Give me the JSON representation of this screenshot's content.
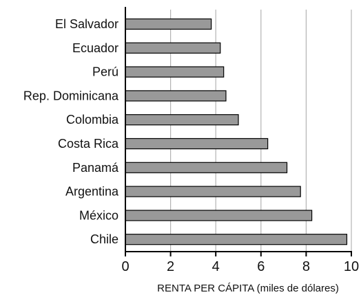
{
  "chart_data": {
    "type": "bar",
    "orientation": "horizontal",
    "categories": [
      "El Salvador",
      "Ecuador",
      "Perú",
      "Rep. Dominicana",
      "Colombia",
      "Costa Rica",
      "Panamá",
      "Argentina",
      "México",
      "Chile"
    ],
    "values": [
      3.8,
      4.2,
      4.35,
      4.45,
      5.0,
      6.3,
      7.15,
      7.75,
      8.25,
      9.8
    ],
    "xlabel": "RENTA PER CÁPITA (miles de dólares)",
    "ylabel": "",
    "xlim": [
      0,
      10
    ],
    "xticks": [
      "0",
      "2",
      "4",
      "6",
      "8",
      "10"
    ],
    "grid": "vertical",
    "colors": {
      "bar_fill": "#999999",
      "bar_stroke": "#000000",
      "grid": "#b3b3b3"
    }
  }
}
